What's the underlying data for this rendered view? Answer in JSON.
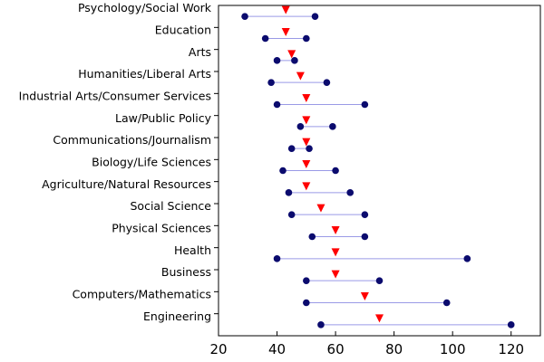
{
  "chart_data": {
    "type": "dot-range",
    "title": "",
    "xlabel": "",
    "ylabel": "",
    "xlim": [
      20,
      130
    ],
    "xticks": [
      20,
      40,
      60,
      80,
      100,
      120
    ],
    "grid": false,
    "colors": {
      "range_line": "#9a9ae6",
      "endpoint": "#0b0b6e",
      "marker": "#ff0000",
      "axis": "#000000"
    },
    "categories": [
      {
        "label": "Psychology/Social Work",
        "low": 29,
        "high": 53,
        "median": 43
      },
      {
        "label": "Education",
        "low": 36,
        "high": 50,
        "median": 43
      },
      {
        "label": "Arts",
        "low": 40,
        "high": 46,
        "median": 45
      },
      {
        "label": "Humanities/Liberal Arts",
        "low": 38,
        "high": 57,
        "median": 48
      },
      {
        "label": "Industrial Arts/Consumer Services",
        "low": 40,
        "high": 70,
        "median": 50
      },
      {
        "label": "Law/Public Policy",
        "low": 48,
        "high": 59,
        "median": 50
      },
      {
        "label": "Communications/Journalism",
        "low": 45,
        "high": 51,
        "median": 50
      },
      {
        "label": "Biology/Life Sciences",
        "low": 42,
        "high": 60,
        "median": 50
      },
      {
        "label": "Agriculture/Natural Resources",
        "low": 44,
        "high": 65,
        "median": 50
      },
      {
        "label": "Social Science",
        "low": 45,
        "high": 70,
        "median": 55
      },
      {
        "label": "Physical Sciences",
        "low": 52,
        "high": 70,
        "median": 60
      },
      {
        "label": "Health",
        "low": 40,
        "high": 105,
        "median": 60
      },
      {
        "label": "Business",
        "low": 50,
        "high": 75,
        "median": 60
      },
      {
        "label": "Computers/Mathematics",
        "low": 50,
        "high": 98,
        "median": 70
      },
      {
        "label": "Engineering",
        "low": 55,
        "high": 120,
        "median": 75
      }
    ]
  }
}
